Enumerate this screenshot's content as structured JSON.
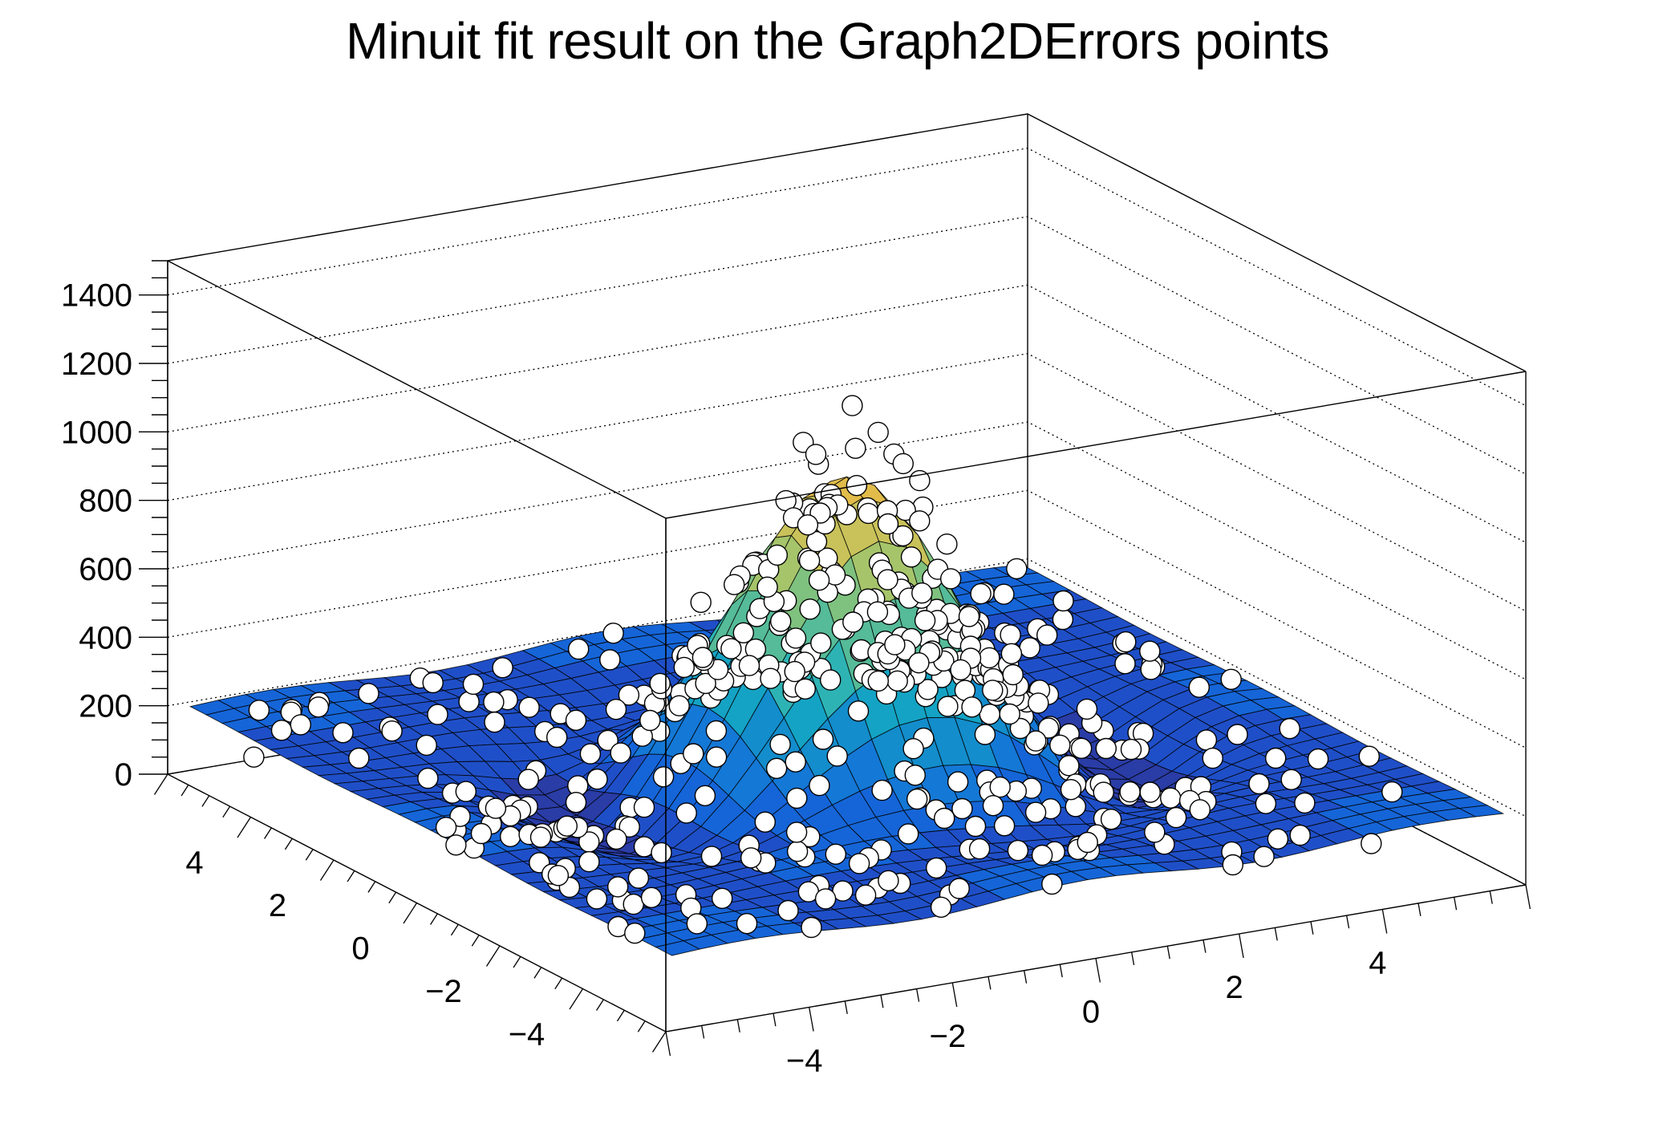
{
  "title": "Minuit fit result on the Graph2DErrors points",
  "colors": {
    "background": "#ffffff",
    "axis": "#000000",
    "marker_fill": "#ffffff",
    "marker_stroke": "#000000",
    "palette": [
      "#2a3ca6",
      "#1f4fc8",
      "#1565d8",
      "#1478d6",
      "#138dcc",
      "#14a3c4",
      "#2eb3b4",
      "#55bb98",
      "#7fc17f",
      "#a6c46a",
      "#c9c25a",
      "#e1bc4a"
    ]
  },
  "chart_data": {
    "type": "surface3d",
    "title": "Minuit fit result on the Graph2DErrors points",
    "subtitle": "",
    "xlabel": "",
    "ylabel": "",
    "zlabel": "",
    "x_range": [
      -6,
      6
    ],
    "y_range": [
      -6,
      6
    ],
    "z_range": [
      0,
      1500
    ],
    "x_ticks": [
      -4,
      -2,
      0,
      2,
      4
    ],
    "y_ticks": [
      4,
      2,
      0,
      -2,
      -4
    ],
    "z_ticks": [
      0,
      200,
      400,
      600,
      800,
      1000,
      1200,
      1400
    ],
    "grid": true,
    "legend": "none",
    "surface": {
      "description": "Fitted 2D function: central Gaussian-like peak on a rippled baseline",
      "peak_value": 1000,
      "peak_position": [
        0,
        0
      ],
      "baseline": 200,
      "min_value_in_troughs": 60,
      "grid_cells": 30,
      "range": [
        -5.8,
        5.8
      ]
    },
    "points": {
      "description": "Graph2DErrors data points drawn as open white circles",
      "approx_count": 500,
      "max_value": 1350,
      "seed": 12345
    }
  },
  "axes": {
    "z_tick_labels": [
      "0",
      "200",
      "400",
      "600",
      "800",
      "1000",
      "1200",
      "1400"
    ],
    "x_tick_labels": [
      "−4",
      "−2",
      "0",
      "2",
      "4"
    ],
    "y_tick_labels": [
      "4",
      "2",
      "0",
      "−2",
      "−4"
    ]
  }
}
